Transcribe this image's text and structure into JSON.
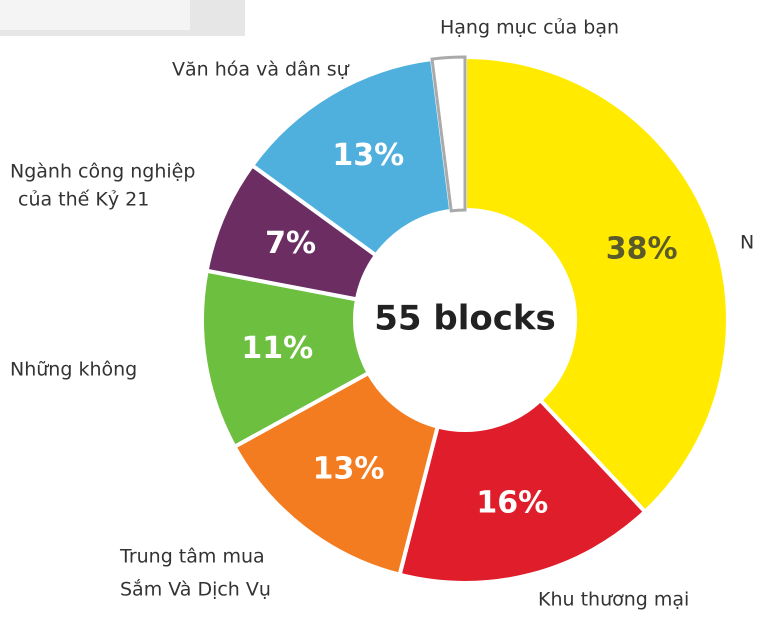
{
  "chart_data": {
    "type": "pie",
    "donut": true,
    "center_label": "55 blocks",
    "categories": [
      [
        "N"
      ],
      [
        "Khu thương mại"
      ],
      [
        "Trung tâm mua",
        "Sắm Và Dịch Vụ"
      ],
      [
        "Những không"
      ],
      [
        "Ngành công nghiệp",
        "của thế Kỷ 21"
      ],
      [
        "Văn hóa và dân sự"
      ],
      [
        "Hạng mục của bạn"
      ]
    ],
    "values": [
      38,
      16,
      13,
      11,
      7,
      13,
      2
    ],
    "value_labels": [
      "38%",
      "16%",
      "13%",
      "11%",
      "7%",
      "13%",
      null
    ],
    "colors": [
      "#ffea00",
      "#e01e2b",
      "#f47c20",
      "#6cbf3f",
      "#6b2d62",
      "#4fb0de",
      "#ffffff"
    ]
  }
}
